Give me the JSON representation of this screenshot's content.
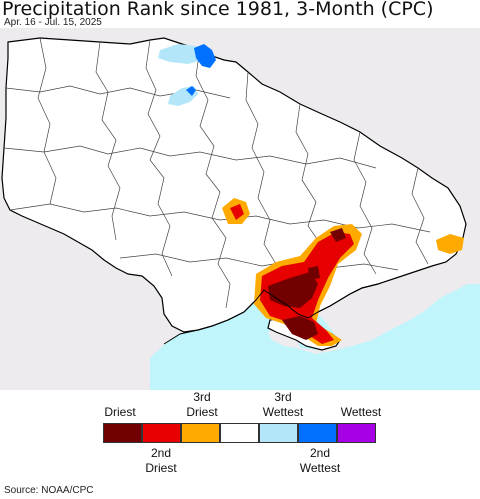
{
  "header": {
    "title": "Precipitation Rank since 1981, 3-Month (CPC)",
    "subtitle": "Apr. 16 - Jul. 15, 2025"
  },
  "legend": {
    "top_labels": [
      "Driest",
      "3rd\nDriest",
      "3rd\nWettest",
      "Wettest"
    ],
    "bottom_labels": [
      "2nd\nDriest",
      "2nd\nWettest"
    ],
    "colors": {
      "driest": "#730000",
      "second_driest": "#e60000",
      "third_driest": "#ffaa00",
      "neutral": "#ffffff",
      "third_wettest": "#b4e6fa",
      "second_wettest": "#0070ff",
      "wettest": "#a800e6"
    }
  },
  "map": {
    "land_color": "#eeebef",
    "sea_color": "#bff5fb",
    "border_color": "#000000"
  },
  "footer": {
    "source": "Source: NOAA/CPC"
  }
}
